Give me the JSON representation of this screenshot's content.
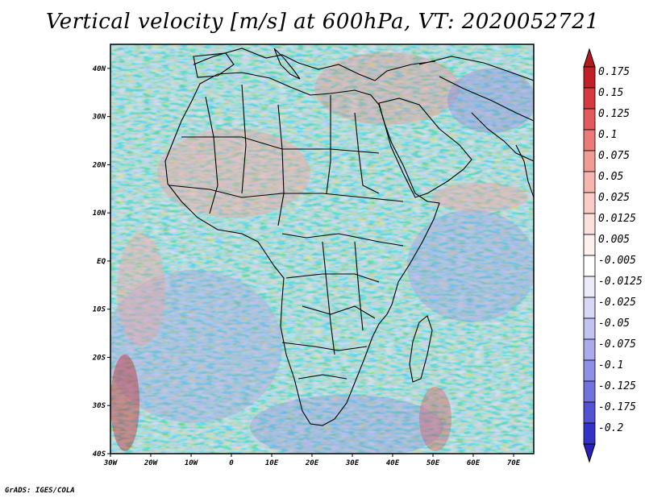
{
  "title": "Vertical velocity [m/s] at 600hPa, VT: 2020052721",
  "footer": "GrADS: IGES/COLA",
  "map": {
    "lon_range": [
      -30,
      75
    ],
    "lat_range": [
      -40,
      45
    ],
    "lon_ticks": [
      {
        "value": -30,
        "label": "30W"
      },
      {
        "value": -20,
        "label": "20W"
      },
      {
        "value": -10,
        "label": "10W"
      },
      {
        "value": 0,
        "label": "0"
      },
      {
        "value": 10,
        "label": "10E"
      },
      {
        "value": 20,
        "label": "20E"
      },
      {
        "value": 30,
        "label": "30E"
      },
      {
        "value": 40,
        "label": "40E"
      },
      {
        "value": 50,
        "label": "50E"
      },
      {
        "value": 60,
        "label": "60E"
      },
      {
        "value": 70,
        "label": "70E"
      }
    ],
    "lat_ticks": [
      {
        "value": 40,
        "label": "40N"
      },
      {
        "value": 30,
        "label": "30N"
      },
      {
        "value": 20,
        "label": "20N"
      },
      {
        "value": 10,
        "label": "10N"
      },
      {
        "value": 0,
        "label": "EQ"
      },
      {
        "value": -10,
        "label": "10S"
      },
      {
        "value": -20,
        "label": "20S"
      },
      {
        "value": -30,
        "label": "30S"
      },
      {
        "value": -40,
        "label": "40S"
      }
    ]
  },
  "colorbar": {
    "levels": [
      {
        "label": "0.175",
        "color": "#c02026"
      },
      {
        "label": "0.15",
        "color": "#d63a3f"
      },
      {
        "label": "0.125",
        "color": "#e35a5c"
      },
      {
        "label": "0.1",
        "color": "#ec7a78"
      },
      {
        "label": "0.075",
        "color": "#f29a94"
      },
      {
        "label": "0.05",
        "color": "#f6b5ae"
      },
      {
        "label": "0.025",
        "color": "#f9ccc6"
      },
      {
        "label": "0.0125",
        "color": "#fbe0dc"
      },
      {
        "label": "0.005",
        "color": "#fdf0ee"
      },
      {
        "label": "-0.005",
        "color": "#ffffff"
      },
      {
        "label": "-0.0125",
        "color": "#ebebfa"
      },
      {
        "label": "-0.025",
        "color": "#d8d8f6"
      },
      {
        "label": "-0.05",
        "color": "#c3c3f1"
      },
      {
        "label": "-0.075",
        "color": "#aaaaec"
      },
      {
        "label": "-0.1",
        "color": "#8f8fe6"
      },
      {
        "label": "-0.125",
        "color": "#7272de"
      },
      {
        "label": "-0.175",
        "color": "#5252d3"
      },
      {
        "label": "-0.2",
        "color": "#3232c6"
      }
    ],
    "top_color": "#b01a20",
    "bottom_color": "#2a1fb8"
  }
}
